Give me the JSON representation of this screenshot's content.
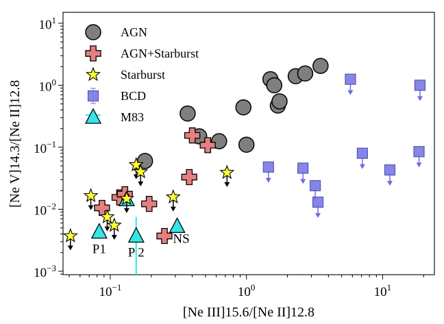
{
  "chart_data": {
    "type": "scatter",
    "xscale": "log",
    "yscale": "log",
    "xlim": [
      0.045,
      24
    ],
    "ylim": [
      0.00088,
      15
    ],
    "xlabel": "[Ne III]15.6/[Ne II]12.8",
    "ylabel": "[Ne V]14.3/[Ne II]12.8",
    "x_ticks": [
      {
        "value": 0.1,
        "base": "10",
        "exp": "−1"
      },
      {
        "value": 1,
        "base": "10",
        "exp": "0"
      },
      {
        "value": 10,
        "base": "10",
        "exp": "1"
      }
    ],
    "y_ticks": [
      {
        "value": 0.001,
        "base": "10",
        "exp": "−3"
      },
      {
        "value": 0.01,
        "base": "10",
        "exp": "−2"
      },
      {
        "value": 0.1,
        "base": "10",
        "exp": "−1"
      },
      {
        "value": 1,
        "base": "10",
        "exp": "0"
      },
      {
        "value": 10,
        "base": "10",
        "exp": "1"
      }
    ],
    "legend_position": "top-left",
    "series": [
      {
        "name": "AGN",
        "marker": "circle",
        "color": "#7f7f7f",
        "upper_limits": false,
        "points": [
          [
            0.18,
            0.06
          ],
          [
            0.37,
            0.35
          ],
          [
            0.45,
            0.15
          ],
          [
            0.63,
            0.125
          ],
          [
            0.95,
            0.44
          ],
          [
            1.0,
            0.11
          ],
          [
            1.5,
            1.25
          ],
          [
            1.6,
            1.0
          ],
          [
            1.7,
            0.47
          ],
          [
            1.75,
            0.55
          ],
          [
            2.3,
            1.4
          ],
          [
            2.7,
            1.55
          ],
          [
            3.5,
            2.05
          ]
        ]
      },
      {
        "name": "AGN+Starburst",
        "marker": "cross",
        "color": "#e57f7f",
        "upper_limits": false,
        "points": [
          [
            0.087,
            0.0105
          ],
          [
            0.117,
            0.0155
          ],
          [
            0.128,
            0.0175
          ],
          [
            0.193,
            0.0122
          ],
          [
            0.25,
            0.0037
          ],
          [
            0.38,
            0.033
          ],
          [
            0.4,
            0.155
          ],
          [
            0.52,
            0.108
          ]
        ]
      },
      {
        "name": "Starburst",
        "marker": "star",
        "color": "#ffff33",
        "upper_limits": true,
        "points": [
          [
            0.051,
            0.0037
          ],
          [
            0.072,
            0.0165
          ],
          [
            0.095,
            0.0075
          ],
          [
            0.107,
            0.0055
          ],
          [
            0.155,
            0.052
          ],
          [
            0.167,
            0.04
          ],
          [
            0.29,
            0.0157
          ],
          [
            0.72,
            0.039
          ],
          [
            0.132,
            0.0148
          ]
        ]
      },
      {
        "name": "BCD",
        "marker": "square",
        "color": "#7f7fe5",
        "upper_limits": true,
        "points": [
          [
            1.45,
            0.048
          ],
          [
            2.6,
            0.046
          ],
          [
            3.2,
            0.024
          ],
          [
            3.35,
            0.013
          ],
          [
            5.8,
            1.25
          ],
          [
            7.1,
            0.08
          ],
          [
            11.3,
            0.043
          ],
          [
            18.5,
            0.085
          ],
          [
            18.8,
            1.0
          ]
        ]
      },
      {
        "name": "M83",
        "marker": "triangle",
        "color": "#33e5e5",
        "upper_limits": false,
        "points": [
          {
            "x": 0.083,
            "y": 0.0043,
            "label": "P1"
          },
          {
            "x": 0.132,
            "y": 0.0143,
            "label": ""
          },
          {
            "x": 0.155,
            "y": 0.0037,
            "label": "P 2",
            "yerr_lo": 0.00088,
            "yerr_hi": 0.0075
          },
          {
            "x": 0.31,
            "y": 0.0053,
            "label": "NS"
          }
        ]
      }
    ]
  }
}
